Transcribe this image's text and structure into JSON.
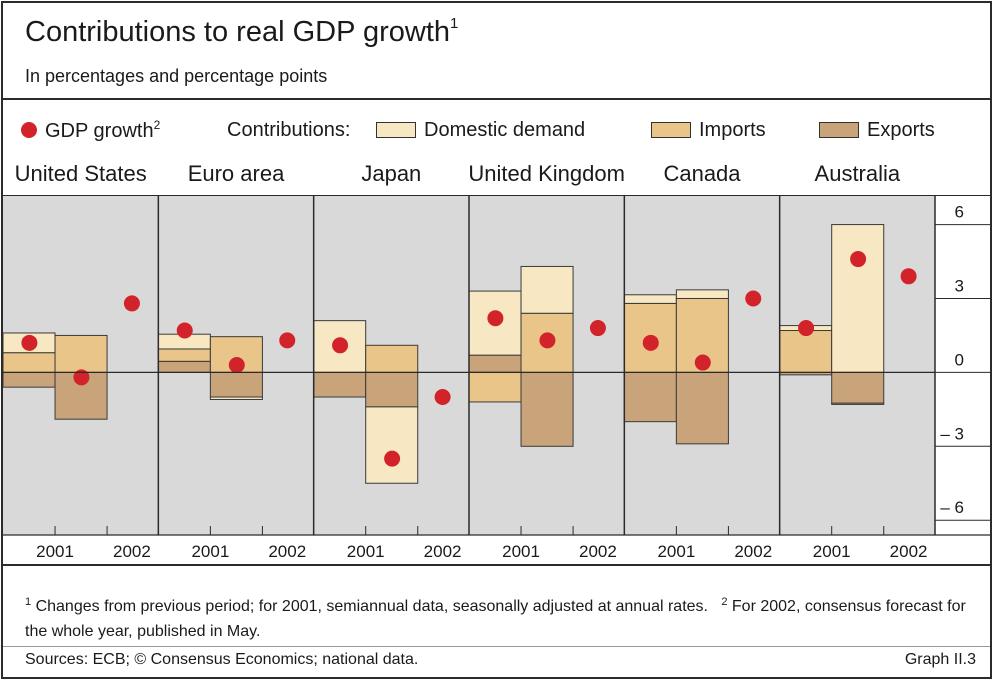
{
  "title": "Contributions to real GDP growth",
  "title_sup": "1",
  "subtitle": "In percentages and percentage points",
  "legend": {
    "gdp_label": "GDP growth",
    "gdp_sup": "2",
    "contributions_label": "Contributions:",
    "domestic_label": "Domestic demand",
    "imports_label": "Imports",
    "exports_label": "Exports"
  },
  "colors": {
    "domestic": "#f7e7c3",
    "imports": "#e9c589",
    "exports": "#c9a47a",
    "gdp_dot": "#d2232a",
    "plot_bg": "#d9d9d9"
  },
  "footnote": {
    "n1": "1",
    "t1": " Changes from previous period; for 2001, semiannual data, seasonally adjusted at annual rates.",
    "n2": "2",
    "t2": " For 2002, consensus forecast for the whole year, published in May."
  },
  "sources": "Sources: ECB; © Consensus Economics; national data.",
  "graph_no": "Graph II.3",
  "chart_data": {
    "type": "bar",
    "ylim": [
      -6.6,
      7.2
    ],
    "yticks": [
      6,
      3,
      0,
      -3,
      -6
    ],
    "ytick_labels": [
      "6",
      "3",
      "0",
      "– 3",
      "– 6"
    ],
    "grid": false,
    "legend_position": "top",
    "panels": [
      {
        "name": "United States",
        "xlabels": [
          "2001",
          "2002"
        ],
        "bars": [
          {
            "domestic": 0.8,
            "imports": 0.8,
            "exports": -0.6
          },
          {
            "domestic": 0.0,
            "imports": 1.5,
            "exports": -1.9
          }
        ],
        "gdp": [
          1.2,
          -0.2,
          2.8
        ]
      },
      {
        "name": "Euro area",
        "xlabels": [
          "2001",
          "2002"
        ],
        "bars": [
          {
            "domestic": 0.6,
            "imports": 0.5,
            "exports": 0.45
          },
          {
            "domestic": -0.1,
            "imports": 1.45,
            "exports": -1.0
          }
        ],
        "gdp": [
          1.7,
          0.3,
          1.3
        ]
      },
      {
        "name": "Japan",
        "xlabels": [
          "2001",
          "2002"
        ],
        "bars": [
          {
            "domestic": 2.1,
            "imports": 0.0,
            "exports": -1.0
          },
          {
            "domestic": -3.1,
            "imports": 1.1,
            "exports": -1.4
          }
        ],
        "gdp": [
          1.1,
          -3.5,
          -1.0
        ]
      },
      {
        "name": "United Kingdom",
        "xlabels": [
          "2001",
          "2002"
        ],
        "bars": [
          {
            "domestic": 2.6,
            "imports": -1.2,
            "exports": 0.7
          },
          {
            "domestic": 1.9,
            "imports": 2.4,
            "exports": -3.0
          }
        ],
        "gdp": [
          2.2,
          1.3,
          1.8
        ]
      },
      {
        "name": "Canada",
        "xlabels": [
          "2001",
          "2002"
        ],
        "bars": [
          {
            "domestic": 0.35,
            "imports": 2.8,
            "exports": -2.0
          },
          {
            "domestic": 0.35,
            "imports": 3.0,
            "exports": -2.9
          }
        ],
        "gdp": [
          1.2,
          0.4,
          3.0
        ]
      },
      {
        "name": "Australia",
        "xlabels": [
          "2001",
          "2002"
        ],
        "bars": [
          {
            "domestic": 0.2,
            "imports": 1.7,
            "exports": -0.1
          },
          {
            "domestic": 6.0,
            "imports": -0.05,
            "exports": -1.25
          }
        ],
        "gdp": [
          1.8,
          4.6,
          3.9
        ]
      }
    ]
  }
}
